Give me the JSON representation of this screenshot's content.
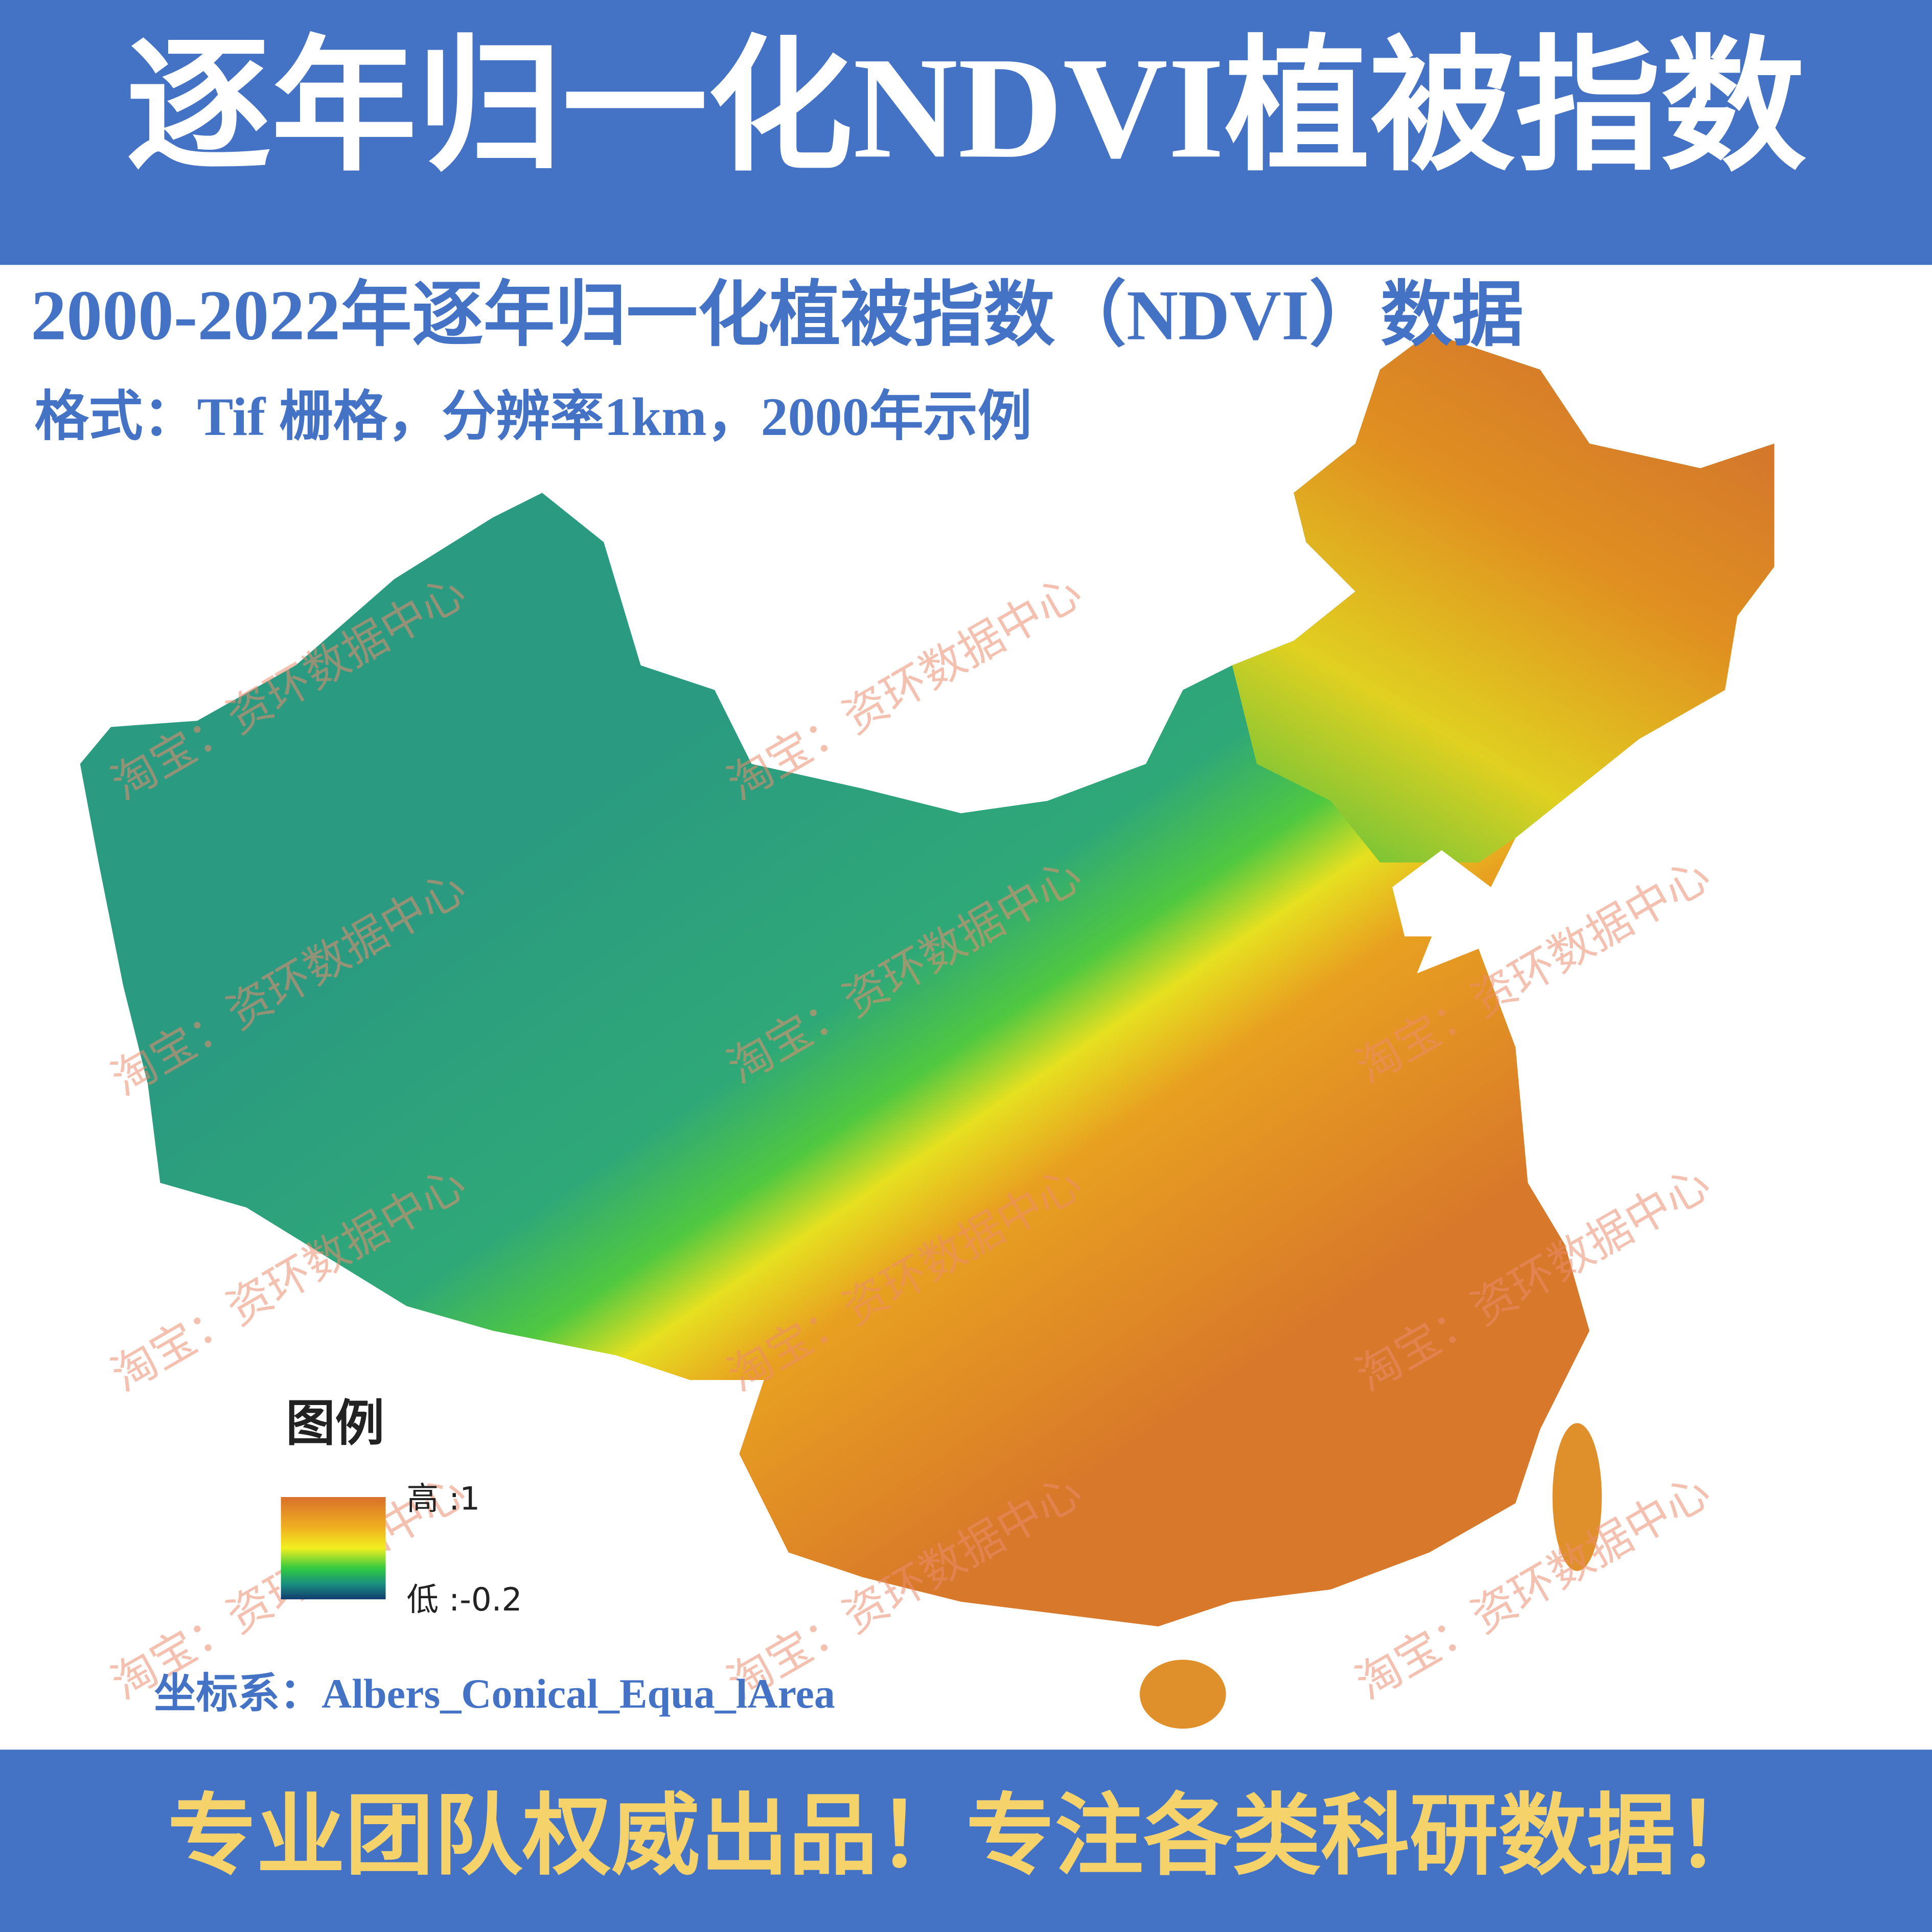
{
  "header": {
    "title": "逐年归一化NDVI植被指数"
  },
  "subtitle": {
    "line1": "2000-2022年逐年归一化植被指数（NDVI）数据",
    "line2": "格式：Tif 栅格，分辨率1km，2000年示例"
  },
  "legend": {
    "title": "图例",
    "high": "高 :1",
    "low": "低 :-0.2"
  },
  "coordinate_system": "坐标系：Albers_Conical_Equa_lArea",
  "watermark": "淘宝：资环数据中心",
  "footer": {
    "text": "专业团队权威出品！专注各类科研数据！"
  }
}
